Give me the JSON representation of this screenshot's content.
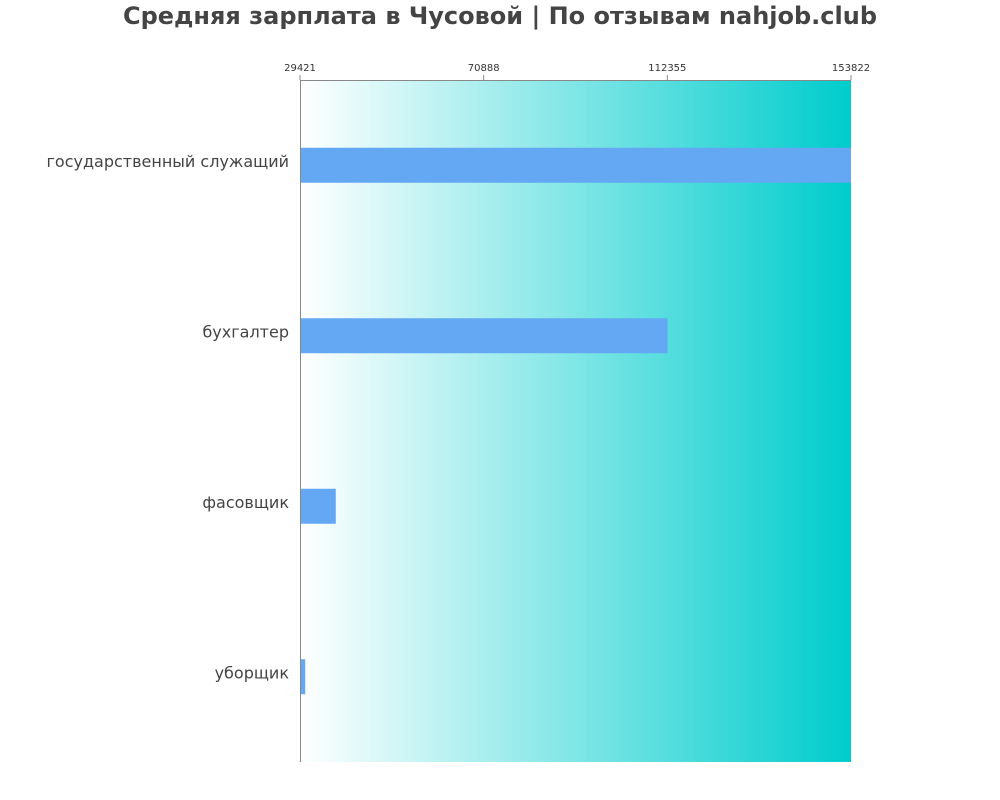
{
  "chart_data": {
    "type": "bar",
    "orientation": "horizontal",
    "title": "Средняя зарплата в Чусовой | По отзывам nahjob.club",
    "categories": [
      "государственный служащий",
      "бухгалтер",
      "фасовщик",
      "уборщик"
    ],
    "values": [
      153822,
      112400,
      37500,
      30600
    ],
    "xlim": [
      29421,
      153822
    ],
    "xticks": [
      29421,
      70888,
      112355,
      153822
    ],
    "xtick_labels": [
      "29421",
      "70888",
      "112355",
      "153822"
    ],
    "tick_position": "top",
    "grid": false,
    "colors": {
      "bar": "#64a7f2",
      "background_gradient_start": "#ffffff",
      "background_gradient_end": "#00cccc",
      "axis": "#888888",
      "label_text": "#444444",
      "tick_text": "#333333"
    }
  }
}
